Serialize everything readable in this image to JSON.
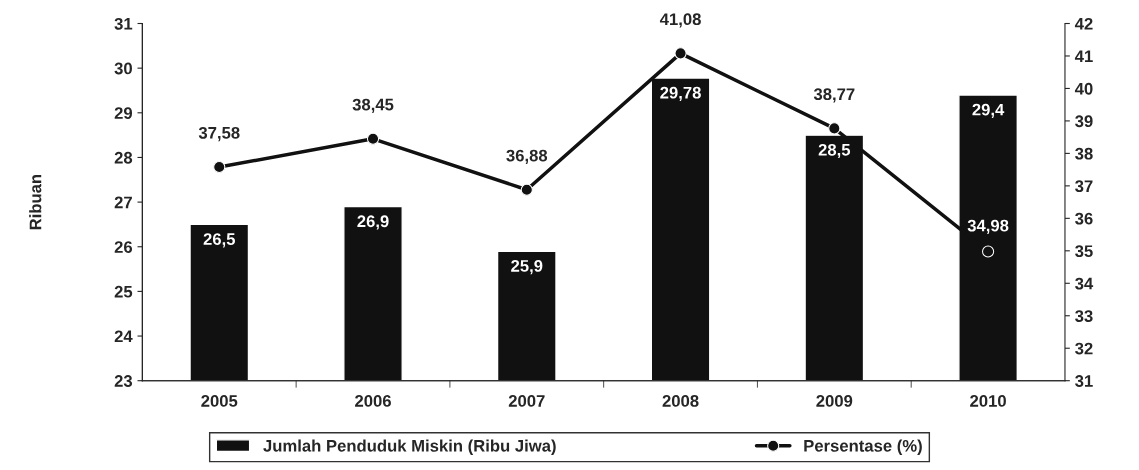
{
  "chart_data": {
    "type": "bar",
    "ylabel": "Ribuan",
    "categories": [
      "2005",
      "2006",
      "2007",
      "2008",
      "2009",
      "2010"
    ],
    "series": [
      {
        "name": "Jumlah Penduduk Miskin (Ribu Jiwa)",
        "color": "#111111",
        "values": [
          26.5,
          26.9,
          25.9,
          29.78,
          28.5,
          29.4
        ],
        "value_labels": [
          "26,5",
          "26,9",
          "25,9",
          "29,78",
          "28,5",
          "29,4"
        ]
      },
      {
        "name": "Persentase (%)",
        "type": "line",
        "axis": "y2",
        "color": "#111111",
        "values": [
          37.58,
          38.45,
          36.88,
          41.08,
          38.77,
          34.98
        ],
        "value_labels": [
          "37,58",
          "38,45",
          "36,88",
          "41,08",
          "38,77",
          "34,98"
        ]
      }
    ],
    "ylim": [
      23,
      31
    ],
    "yticks": [
      23,
      24,
      25,
      26,
      27,
      28,
      29,
      30,
      31
    ],
    "y2lim": [
      31,
      42
    ],
    "y2ticks": [
      31,
      32,
      33,
      34,
      35,
      36,
      37,
      38,
      39,
      40,
      41,
      42
    ],
    "marker": "circle",
    "line_style": "solid",
    "grid": false,
    "legend": "bottom"
  }
}
